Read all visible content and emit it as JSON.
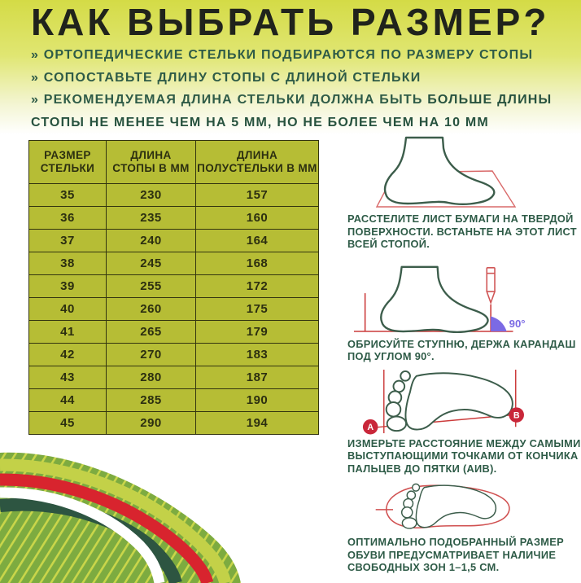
{
  "title": "КАК ВЫБРАТЬ РАЗМЕР?",
  "bullets": [
    {
      "text": "» ОРТОПЕДИЧЕСКИЕ СТЕЛЬКИ ПОДБИРАЮТСЯ ПО РАЗМЕРУ СТОПЫ"
    },
    {
      "text": "» СОПОСТАВЬТЕ ДЛИНУ СТОПЫ С ДЛИНОЙ СТЕЛЬКИ"
    },
    {
      "text_plain": "» РЕКОМЕНДУЕМАЯ ДЛИНА СТЕЛЬКИ ДОЛЖНА БЫТЬ ",
      "text_bold": "БОЛЬШЕ ДЛИНЫ СТОПЫ НЕ МЕНЕЕ ЧЕМ НА 5 ММ, НО НЕ БОЛЕЕ ЧЕМ НА 10 ММ"
    }
  ],
  "size_table": {
    "columns": [
      [
        "РАЗМЕР",
        "СТЕЛЬКИ"
      ],
      [
        "ДЛИНА",
        "СТОПЫ В ММ"
      ],
      [
        "ДЛИНА",
        "ПОЛУСТЕЛЬКИ В ММ"
      ]
    ],
    "rows": [
      [
        "35",
        "230",
        "157"
      ],
      [
        "36",
        "235",
        "160"
      ],
      [
        "37",
        "240",
        "164"
      ],
      [
        "38",
        "245",
        "168"
      ],
      [
        "39",
        "255",
        "172"
      ],
      [
        "40",
        "260",
        "175"
      ],
      [
        "41",
        "265",
        "179"
      ],
      [
        "42",
        "270",
        "183"
      ],
      [
        "43",
        "280",
        "187"
      ],
      [
        "44",
        "285",
        "190"
      ],
      [
        "45",
        "290",
        "194"
      ]
    ]
  },
  "steps": [
    {
      "illustration": "foot-on-paper-icon",
      "caption": "РАССТЕЛИТЕ ЛИСТ БУМАГИ НА ТВЕРДОЙ ПОВЕРХНОСТИ. ВСТАНЬТЕ НА ЭТОТ ЛИСТ ВСЕЙ СТОПОЙ."
    },
    {
      "illustration": "foot-pencil-icon",
      "angle_label": "90°",
      "caption": "ОБРИСУЙТЕ СТУПНЮ, ДЕРЖА КАРАНДАШ ПОД УГЛОМ 90°."
    },
    {
      "illustration": "footprint-measure-icon",
      "point_a": "А",
      "point_b": "В",
      "caption": "ИЗМЕРЬТЕ РАССТОЯНИЕ МЕЖДУ САМЫМИ ВЫСТУПАЮЩИМИ ТОЧКАМИ ОТ КОНЧИКА ПАЛЬЦЕВ ДО ПЯТКИ (АИВ)."
    },
    {
      "illustration": "footprint-insole-icon",
      "caption": "ОПТИМАЛЬНО ПОДОБРАННЫЙ РАЗМЕР ОБУВИ ПРЕДУСМАТРИВАЕТ НАЛИЧИЕ СВОБОДНЫХ ЗОН 1–1,5 СМ."
    }
  ],
  "colors": {
    "heading_text": "#20231c",
    "accent_green_text": "#2e5b47",
    "table_cell_bg": "#b6bd35",
    "table_border": "#33350f",
    "foot_outline_green": "#3c5d4b",
    "measure_line_red": "#cc3b3b",
    "paper_outline_red": "#d96a6a",
    "badge_red": "#c9273a",
    "angle_purple": "#7b6ae4",
    "wave_green": "#7dab40",
    "wave_stripe_yellow": "#c9d64a",
    "wave_band_yellow": "#c3d148",
    "wave_band_red": "#d8242e",
    "wave_band_dark_green": "#2d5541"
  }
}
